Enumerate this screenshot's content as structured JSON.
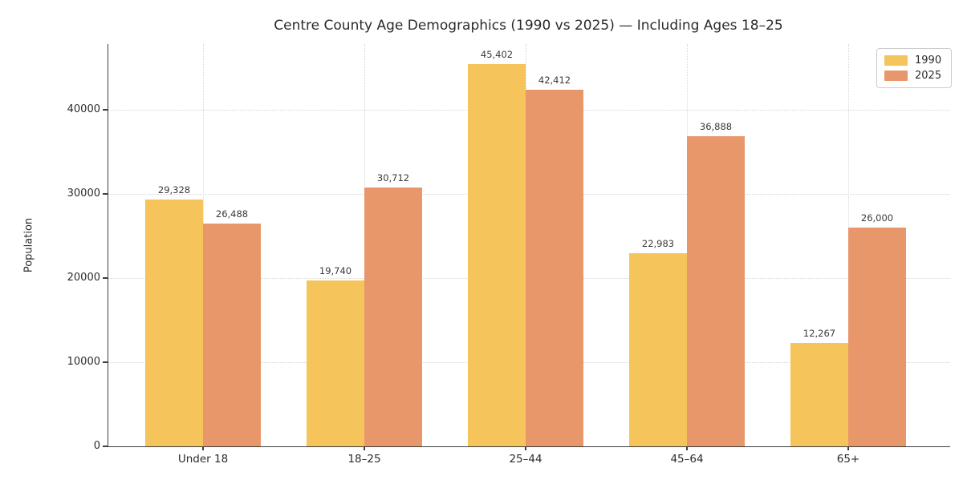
{
  "title": "Centre County Age Demographics (1990 vs 2025) — Including Ages 18–25",
  "chart_data": {
    "type": "bar",
    "categories": [
      "Under 18",
      "18–25",
      "25–44",
      "45–64",
      "65+"
    ],
    "series": [
      {
        "name": "1990",
        "color": "#F5C45A",
        "values": [
          29328,
          19740,
          45402,
          22983,
          12267
        ],
        "labels": [
          "29,328",
          "19,740",
          "45,402",
          "22,983",
          "12,267"
        ]
      },
      {
        "name": "2025",
        "color": "#E8976B",
        "values": [
          26488,
          30712,
          42412,
          36888,
          26000
        ],
        "labels": [
          "26,488",
          "30,712",
          "42,412",
          "36,888",
          "26,000"
        ]
      }
    ],
    "xlabel": "",
    "ylabel": "Population",
    "y_ticks": [
      0,
      10000,
      20000,
      30000,
      40000
    ],
    "y_tick_labels": [
      "0",
      "10000",
      "20000",
      "30000",
      "40000"
    ],
    "ylim": [
      0,
      47800
    ],
    "grid": true,
    "grid_style": "dotted",
    "legend_position": "upper right"
  }
}
